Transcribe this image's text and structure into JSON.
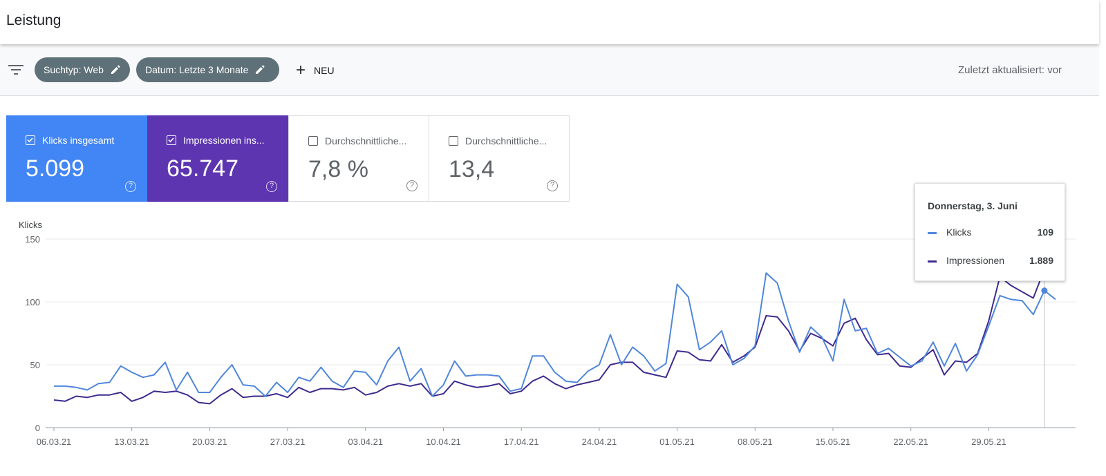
{
  "header": {
    "title": "Leistung"
  },
  "filters": {
    "search_type": "Suchtyp: Web",
    "date": "Datum: Letzte 3 Monate",
    "new_label": "NEU",
    "last_updated": "Zuletzt aktualisiert: vor"
  },
  "metrics": [
    {
      "label": "Klicks insgesamt",
      "value": "5.099",
      "checked": true,
      "color": "#4285f4"
    },
    {
      "label": "Impressionen ins...",
      "value": "65.747",
      "checked": true,
      "color": "#5e35b1"
    },
    {
      "label": "Durchschnittliche...",
      "value": "7,8 %",
      "checked": false
    },
    {
      "label": "Durchschnittliche...",
      "value": "13,4",
      "checked": false
    }
  ],
  "tooltip": {
    "date": "Donnerstag, 3. Juni",
    "rows": [
      {
        "name": "Klicks",
        "value": "109",
        "color": "#4f86db"
      },
      {
        "name": "Impressionen",
        "value": "1.889",
        "color": "#3f2a8f"
      }
    ]
  },
  "chart_data": {
    "type": "line",
    "ylabel": "Klicks",
    "ylim": [
      0,
      150
    ],
    "yticks": [
      0,
      50,
      100,
      150
    ],
    "xtick_labels": [
      "06.03.21",
      "13.03.21",
      "20.03.21",
      "27.03.21",
      "03.04.21",
      "10.04.21",
      "17.04.21",
      "24.04.21",
      "01.05.21",
      "08.05.21",
      "15.05.21",
      "22.05.21",
      "29.05.21"
    ],
    "grid": true,
    "series": [
      {
        "name": "Klicks",
        "color": "#4f86db",
        "values": [
          33,
          33,
          32,
          30,
          35,
          36,
          49,
          44,
          40,
          42,
          52,
          30,
          44,
          28,
          28,
          40,
          50,
          34,
          33,
          25,
          36,
          28,
          40,
          37,
          48,
          37,
          32,
          45,
          44,
          34,
          53,
          64,
          37,
          47,
          25,
          34,
          53,
          41,
          42,
          42,
          41,
          29,
          31,
          57,
          57,
          44,
          37,
          36,
          45,
          50,
          74,
          50,
          64,
          57,
          45,
          51,
          114,
          104,
          62,
          68,
          77,
          50,
          55,
          65,
          123,
          115,
          85,
          60,
          80,
          72,
          53,
          102,
          77,
          79,
          59,
          63,
          56,
          49,
          53,
          68,
          49,
          67,
          45,
          58,
          81,
          105,
          102,
          101,
          90,
          109,
          102
        ]
      },
      {
        "name": "Impressionen",
        "color": "#3f2a8f",
        "values": [
          22,
          21,
          25,
          24,
          26,
          26,
          28,
          21,
          24,
          29,
          28,
          29,
          26,
          20,
          19,
          26,
          31,
          24,
          25,
          25,
          27,
          24,
          32,
          28,
          31,
          31,
          30,
          32,
          26,
          28,
          33,
          35,
          33,
          35,
          25,
          27,
          37,
          34,
          32,
          33,
          35,
          27,
          29,
          37,
          41,
          35,
          31,
          34,
          36,
          38,
          50,
          52,
          52,
          44,
          42,
          40,
          61,
          60,
          54,
          53,
          66,
          52,
          57,
          64,
          89,
          88,
          77,
          61,
          75,
          71,
          65,
          83,
          87,
          70,
          58,
          59,
          49,
          48,
          55,
          62,
          42,
          53,
          52,
          59,
          85,
          120,
          113,
          108,
          103,
          126,
          126
        ]
      }
    ]
  }
}
